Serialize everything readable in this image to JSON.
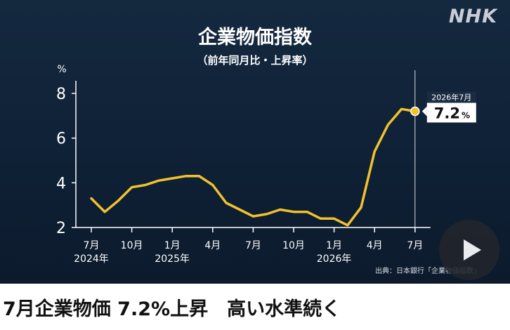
{
  "brand": {
    "logo": "NHK"
  },
  "chart_data": {
    "type": "line",
    "title": "企業物価指数",
    "subtitle": "（前年同月比・上昇率）",
    "ylabel": "%",
    "ylim": [
      2,
      8
    ],
    "yticks": [
      2,
      4,
      6,
      8
    ],
    "x_start": {
      "year": 2024,
      "month": 7
    },
    "x_ticks": [
      {
        "month_index": 0,
        "label": "7月",
        "year_label": "2024年"
      },
      {
        "month_index": 3,
        "label": "10月",
        "year_label": ""
      },
      {
        "month_index": 6,
        "label": "1月",
        "year_label": "2025年"
      },
      {
        "month_index": 9,
        "label": "4月",
        "year_label": ""
      },
      {
        "month_index": 12,
        "label": "7月",
        "year_label": ""
      },
      {
        "month_index": 15,
        "label": "10月",
        "year_label": ""
      },
      {
        "month_index": 18,
        "label": "1月",
        "year_label": "2026年"
      },
      {
        "month_index": 21,
        "label": "4月",
        "year_label": ""
      },
      {
        "month_index": 24,
        "label": "7月",
        "year_label": ""
      }
    ],
    "series": [
      {
        "color": "#f2c12e",
        "values": [
          3.3,
          2.7,
          3.2,
          3.8,
          3.9,
          4.1,
          4.2,
          4.3,
          4.3,
          3.9,
          3.1,
          2.8,
          2.5,
          2.6,
          2.8,
          2.7,
          2.7,
          2.4,
          2.4,
          2.1,
          2.9,
          5.4,
          6.6,
          7.3,
          7.2
        ]
      }
    ],
    "callout": {
      "label": "2026年7月",
      "value": "7.2",
      "unit": "%"
    },
    "source": "出典：日本銀行「企業物価指数」"
  },
  "headline": "7月企業物価 7.2%上昇　高い水準続く",
  "colors": {
    "background": "#0f2136",
    "line": "#f2c12e",
    "axis": "#ffffff"
  }
}
